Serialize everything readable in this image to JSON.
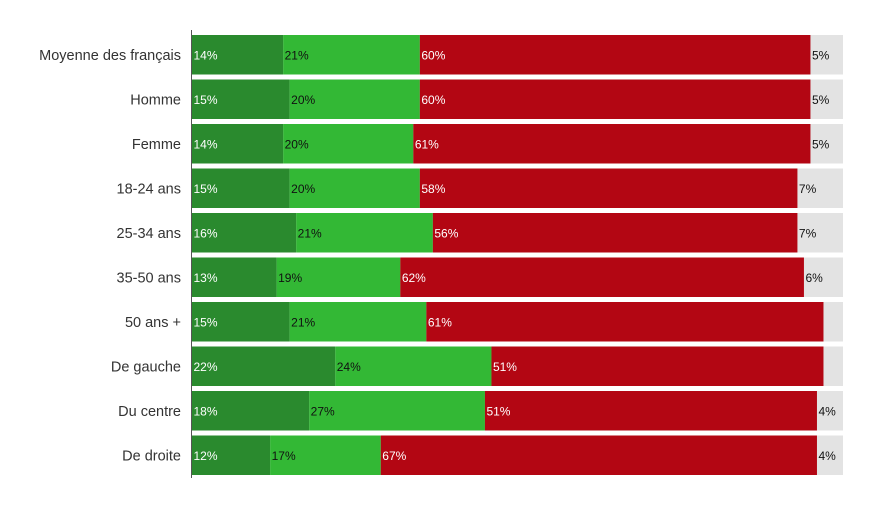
{
  "chart_data": {
    "type": "bar",
    "orientation": "horizontal",
    "stacked": true,
    "categories": [
      "Moyenne des français",
      "Homme",
      "Femme",
      "18-24 ans",
      "25-34 ans",
      "35-50 ans",
      "50 ans +",
      "De gauche",
      "Du centre",
      "De droite"
    ],
    "series": [
      {
        "color": "#2a8a2e",
        "label_color": "#ffffff",
        "values": [
          14,
          15,
          14,
          15,
          16,
          13,
          15,
          22,
          18,
          12
        ]
      },
      {
        "color": "#33b835",
        "label_color": "#111111",
        "values": [
          21,
          20,
          20,
          20,
          21,
          19,
          21,
          24,
          27,
          17
        ]
      },
      {
        "color": "#b30613",
        "label_color": "#ffffff",
        "values": [
          60,
          60,
          61,
          58,
          56,
          62,
          61,
          51,
          51,
          67
        ]
      },
      {
        "color": "#e3e3e3",
        "label_color": "#111111",
        "values": [
          5,
          5,
          5,
          7,
          7,
          6,
          null,
          null,
          4,
          4
        ]
      }
    ],
    "xlim": [
      0,
      100
    ],
    "grid": false,
    "legend": "none"
  }
}
